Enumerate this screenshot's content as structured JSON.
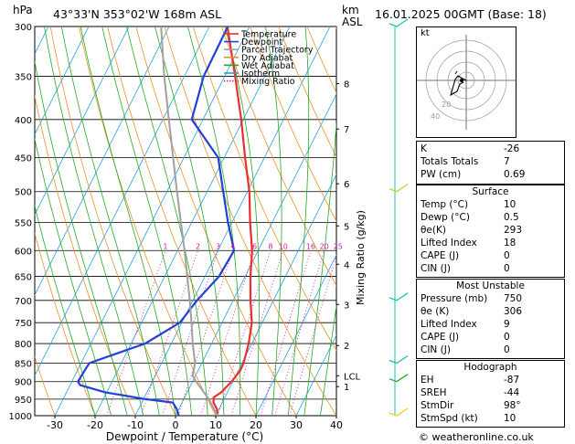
{
  "header": {
    "pressure_unit": "hPa",
    "location": "43°33'N  353°02'W  168m  ASL",
    "height_unit_km": "km",
    "height_unit_asl": "ASL",
    "datetime": "16.01.2025  00GMT  (Base: 18)"
  },
  "footer": {
    "copyright": "© weatheronline.co.uk"
  },
  "hodograph": {
    "title": "kt",
    "ring_labels": [
      "20",
      "40"
    ]
  },
  "indices": {
    "rows": [
      {
        "label": "K",
        "value": "-26"
      },
      {
        "label": "Totals Totals",
        "value": "7"
      },
      {
        "label": "PW (cm)",
        "value": "0.69"
      }
    ]
  },
  "surface": {
    "title": "Surface",
    "rows": [
      {
        "label": "Temp (°C)",
        "value": "10"
      },
      {
        "label": "Dewp (°C)",
        "value": "0.5"
      },
      {
        "label": "θe(K)",
        "value": "293"
      },
      {
        "label": "Lifted Index",
        "value": "18"
      },
      {
        "label": "CAPE (J)",
        "value": "0"
      },
      {
        "label": "CIN (J)",
        "value": "0"
      }
    ]
  },
  "most_unstable": {
    "title": "Most Unstable",
    "rows": [
      {
        "label": "Pressure (mb)",
        "value": "750"
      },
      {
        "label": "θe (K)",
        "value": "306"
      },
      {
        "label": "Lifted Index",
        "value": "9"
      },
      {
        "label": "CAPE (J)",
        "value": "0"
      },
      {
        "label": "CIN (J)",
        "value": "0"
      }
    ]
  },
  "hodo_table": {
    "title": "Hodograph",
    "rows": [
      {
        "label": "EH",
        "value": "-87"
      },
      {
        "label": "SREH",
        "value": "-44"
      },
      {
        "label": "StmDir",
        "value": "98°"
      },
      {
        "label": "StmSpd (kt)",
        "value": "10"
      }
    ]
  },
  "chart_data": {
    "type": "line",
    "title": "",
    "xlabel": "Dewpoint / Temperature (°C)",
    "ylabel": "hPa",
    "right_ylabel": "Mixing Ratio (g/kg)",
    "xlim": [
      -35,
      40
    ],
    "ylim_hpa": [
      1000,
      300
    ],
    "x_ticks": [
      -30,
      -20,
      -10,
      0,
      10,
      20,
      30,
      40
    ],
    "pressure_levels": [
      300,
      350,
      400,
      450,
      500,
      550,
      600,
      650,
      700,
      750,
      800,
      850,
      900,
      950,
      1000
    ],
    "km_ticks": [
      {
        "label": "8",
        "p": 358
      },
      {
        "label": "7",
        "p": 412
      },
      {
        "label": "6",
        "p": 488
      },
      {
        "label": "5",
        "p": 556
      },
      {
        "label": "4",
        "p": 626
      },
      {
        "label": "3",
        "p": 709
      },
      {
        "label": "2",
        "p": 805
      },
      {
        "label": "LCL",
        "p": 884
      },
      {
        "label": "1",
        "p": 914
      }
    ],
    "mixing_ratio_labels": [
      "1",
      "2",
      "3",
      "4",
      "6",
      "8",
      "10",
      "16",
      "20",
      "25"
    ],
    "mixing_ratio_values": [
      1,
      2,
      3,
      4,
      6,
      8,
      10,
      16,
      20,
      25
    ],
    "legend": {
      "placement": "top-left",
      "entries": [
        {
          "name": "Temperature",
          "color": "#e8302e",
          "style": "solid"
        },
        {
          "name": "Dewpoint",
          "color": "#2040d8",
          "style": "solid"
        },
        {
          "name": "Parcel Trajectory",
          "color": "#a0a0a0",
          "style": "solid"
        },
        {
          "name": "Dry Adiabat",
          "color": "#e8922a",
          "style": "solid"
        },
        {
          "name": "Wet Adiabat",
          "color": "#22aa22",
          "style": "solid"
        },
        {
          "name": "Isotherm",
          "color": "#22a0d8",
          "style": "solid"
        },
        {
          "name": "Mixing Ratio",
          "color": "#d020a0",
          "style": "dotted"
        }
      ]
    },
    "series": [
      {
        "name": "Temperature",
        "color": "#e8302e",
        "points": [
          [
            1000,
            10.4
          ],
          [
            980,
            9.5
          ],
          [
            960,
            7.8
          ],
          [
            945,
            7.2
          ],
          [
            930,
            8.5
          ],
          [
            900,
            9.7
          ],
          [
            870,
            10.5
          ],
          [
            850,
            10.4
          ],
          [
            800,
            9.2
          ],
          [
            750,
            7.4
          ],
          [
            700,
            4.3
          ],
          [
            650,
            1.3
          ],
          [
            600,
            -1.5
          ],
          [
            550,
            -5.5
          ],
          [
            500,
            -9.5
          ],
          [
            450,
            -14.8
          ],
          [
            400,
            -20.5
          ],
          [
            350,
            -27.4
          ],
          [
            300,
            -35.5
          ]
        ]
      },
      {
        "name": "Dewpoint",
        "color": "#2040d8",
        "points": [
          [
            1000,
            0.8
          ],
          [
            980,
            -0.5
          ],
          [
            960,
            -2.3
          ],
          [
            950,
            -9.5
          ],
          [
            930,
            -20.5
          ],
          [
            910,
            -27.5
          ],
          [
            900,
            -28.5
          ],
          [
            850,
            -28
          ],
          [
            800,
            -16.5
          ],
          [
            750,
            -10.5
          ],
          [
            700,
            -9
          ],
          [
            650,
            -6.5
          ],
          [
            600,
            -6
          ],
          [
            550,
            -11
          ],
          [
            500,
            -16
          ],
          [
            450,
            -21.5
          ],
          [
            400,
            -32.8
          ],
          [
            350,
            -35.2
          ],
          [
            300,
            -35.4
          ]
        ]
      },
      {
        "name": "Parcel Trajectory",
        "color": "#a0a0a0",
        "points": [
          [
            1000,
            10.4
          ],
          [
            950,
            6.2
          ],
          [
            900,
            0.9
          ],
          [
            884,
            -0.7
          ],
          [
            850,
            -1.7
          ],
          [
            800,
            -4.7
          ],
          [
            750,
            -7.6
          ],
          [
            700,
            -10.8
          ],
          [
            650,
            -14.4
          ],
          [
            600,
            -18.3
          ],
          [
            550,
            -22.7
          ],
          [
            500,
            -27.5
          ],
          [
            450,
            -32.7
          ],
          [
            400,
            -38.5
          ],
          [
            350,
            -45
          ],
          [
            300,
            -52
          ]
        ]
      }
    ],
    "wind_barbs_hpa": [
      300,
      500,
      700,
      850,
      900,
      1000
    ],
    "wind_barb_colors": [
      "#16c4b0",
      "#b8d820",
      "#16c4b0",
      "#16c4b0",
      "#22aa22",
      "#e8d020"
    ]
  }
}
